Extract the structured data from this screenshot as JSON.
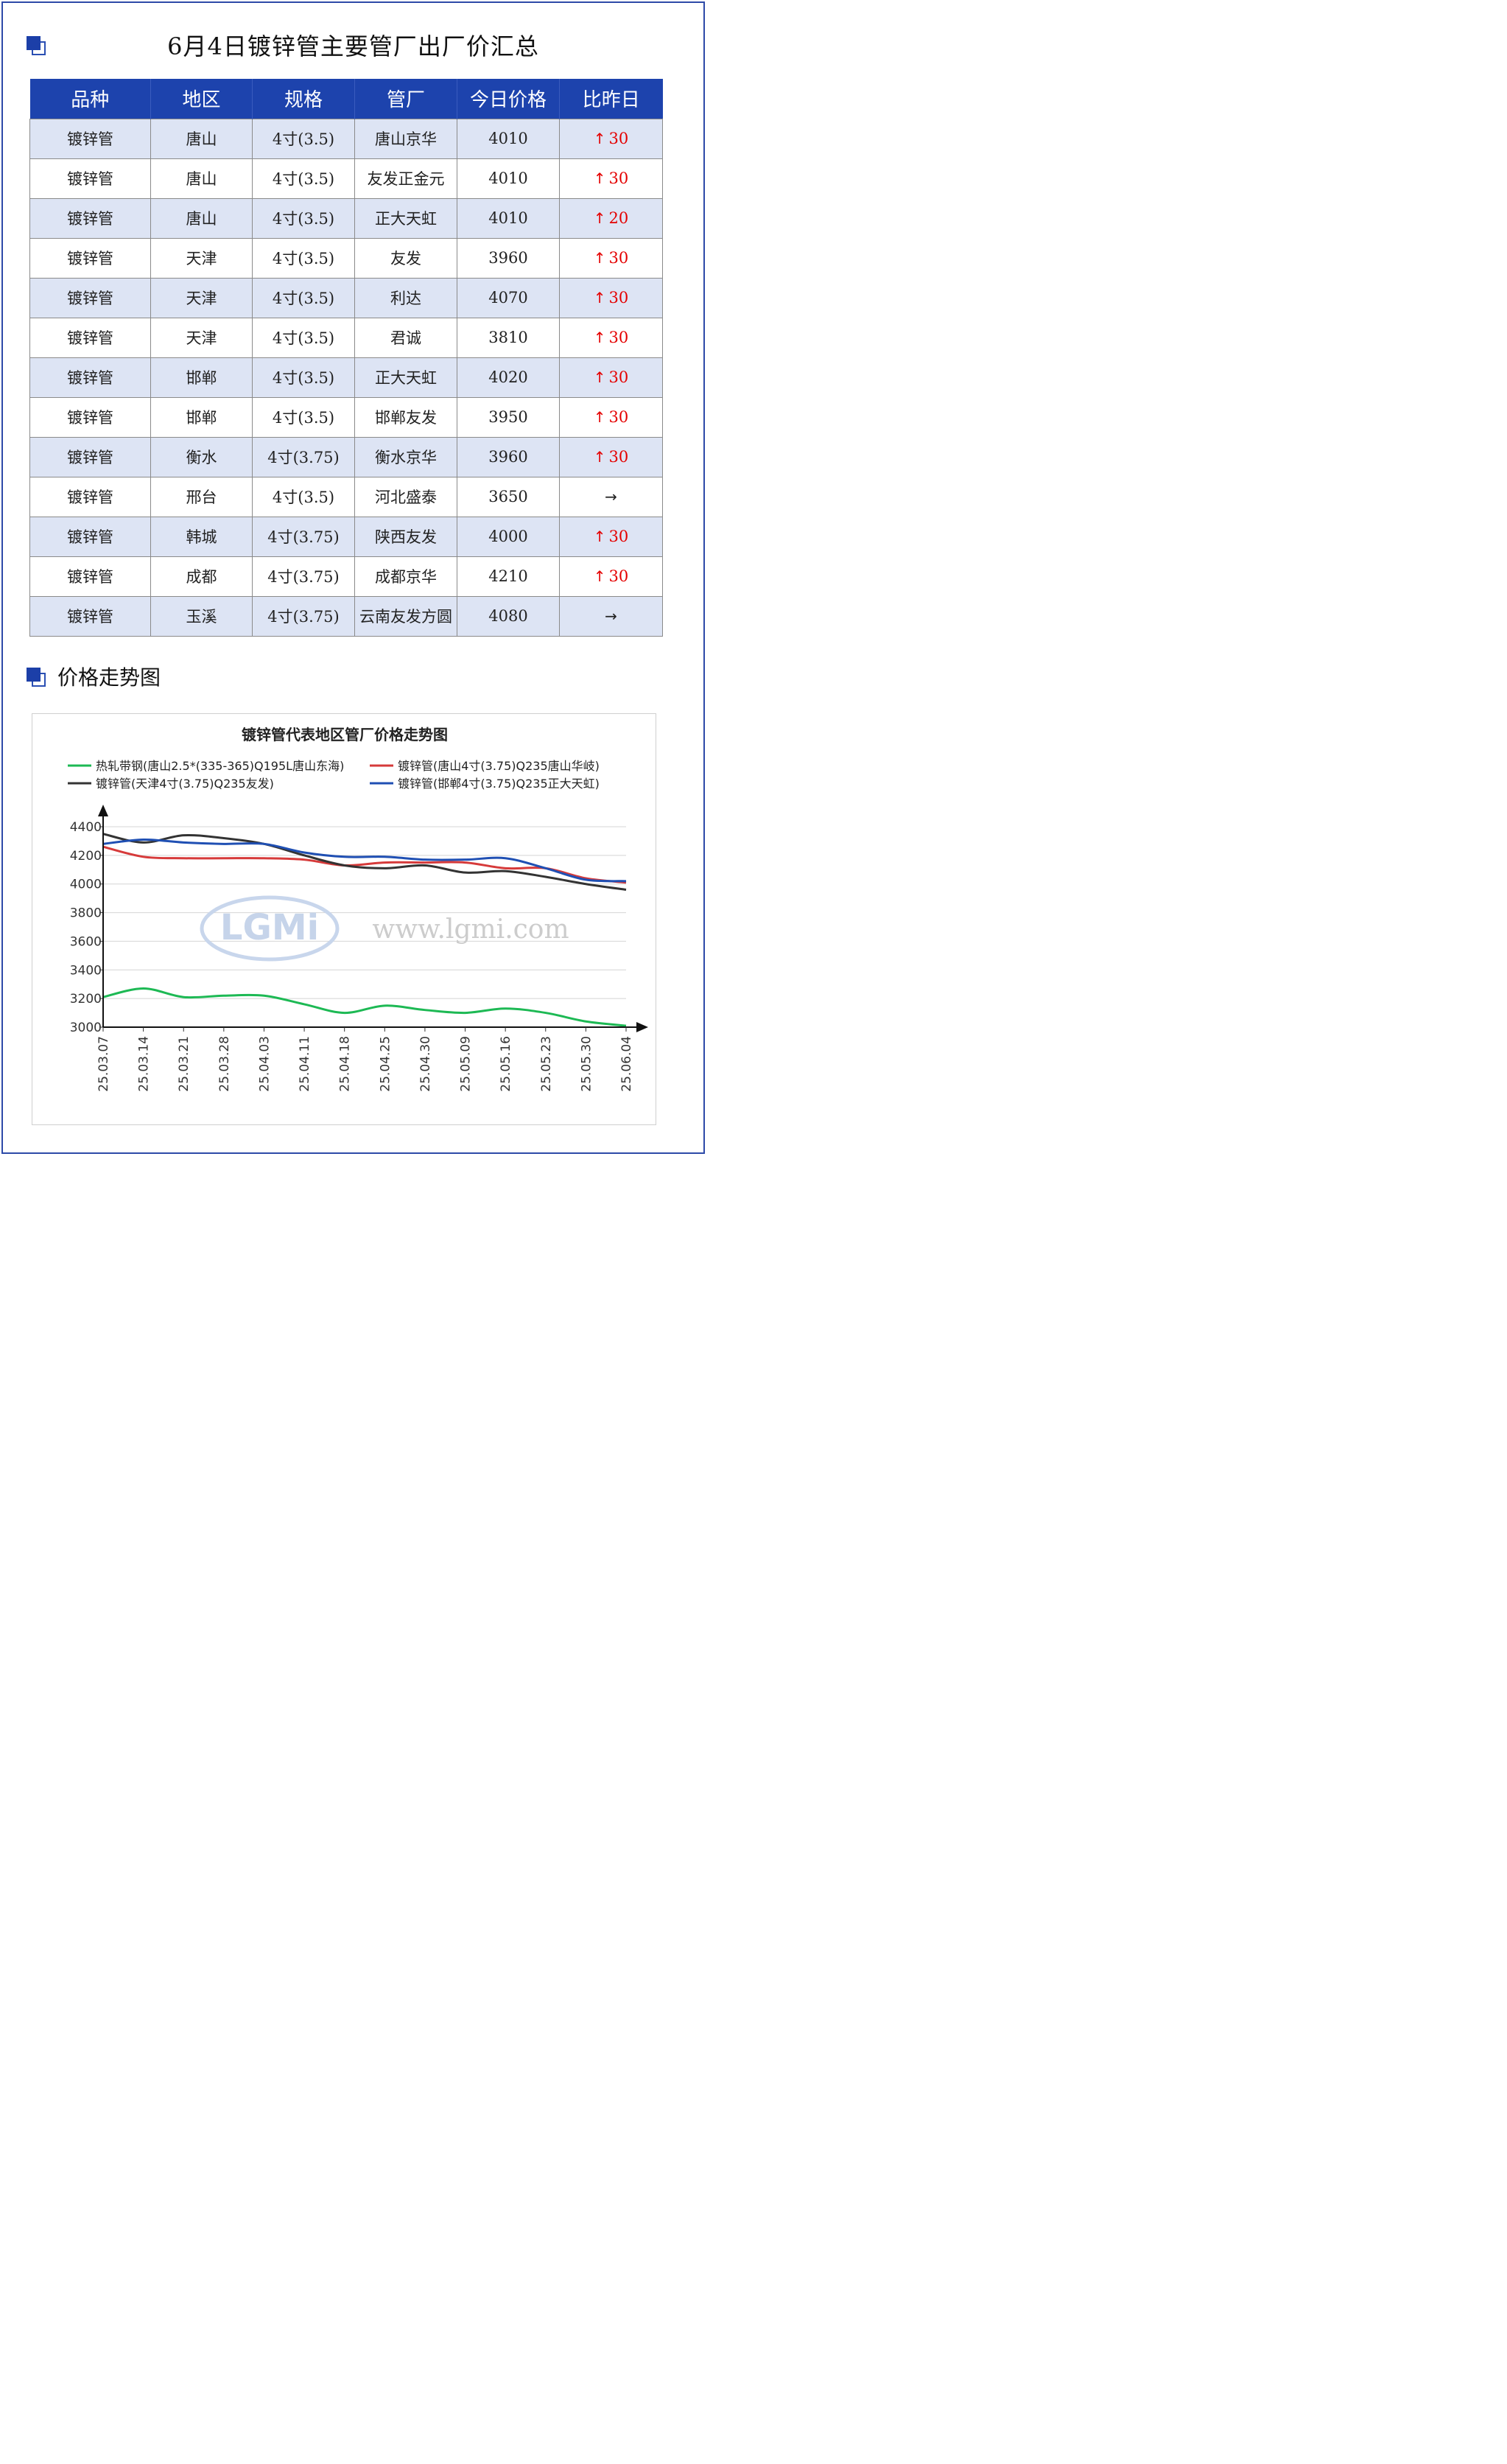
{
  "header": {
    "title": "6月4日镀锌管主要管厂出厂价汇总"
  },
  "table": {
    "columns": [
      "品种",
      "地区",
      "规格",
      "管厂",
      "今日价格",
      "比昨日"
    ],
    "rows": [
      {
        "product": "镀锌管",
        "region": "唐山",
        "spec": "4寸(3.5)",
        "mill": "唐山京华",
        "price": "4010",
        "dir": "up",
        "change": "30"
      },
      {
        "product": "镀锌管",
        "region": "唐山",
        "spec": "4寸(3.5)",
        "mill": "友发正金元",
        "price": "4010",
        "dir": "up",
        "change": "30"
      },
      {
        "product": "镀锌管",
        "region": "唐山",
        "spec": "4寸(3.5)",
        "mill": "正大天虹",
        "price": "4010",
        "dir": "up",
        "change": "20"
      },
      {
        "product": "镀锌管",
        "region": "天津",
        "spec": "4寸(3.5)",
        "mill": "友发",
        "price": "3960",
        "dir": "up",
        "change": "30"
      },
      {
        "product": "镀锌管",
        "region": "天津",
        "spec": "4寸(3.5)",
        "mill": "利达",
        "price": "4070",
        "dir": "up",
        "change": "30"
      },
      {
        "product": "镀锌管",
        "region": "天津",
        "spec": "4寸(3.5)",
        "mill": "君诚",
        "price": "3810",
        "dir": "up",
        "change": "30"
      },
      {
        "product": "镀锌管",
        "region": "邯郸",
        "spec": "4寸(3.5)",
        "mill": "正大天虹",
        "price": "4020",
        "dir": "up",
        "change": "30"
      },
      {
        "product": "镀锌管",
        "region": "邯郸",
        "spec": "4寸(3.5)",
        "mill": "邯郸友发",
        "price": "3950",
        "dir": "up",
        "change": "30"
      },
      {
        "product": "镀锌管",
        "region": "衡水",
        "spec": "4寸(3.75)",
        "mill": "衡水京华",
        "price": "3960",
        "dir": "up",
        "change": "30"
      },
      {
        "product": "镀锌管",
        "region": "邢台",
        "spec": "4寸(3.5)",
        "mill": "河北盛泰",
        "price": "3650",
        "dir": "flat",
        "change": ""
      },
      {
        "product": "镀锌管",
        "region": "韩城",
        "spec": "4寸(3.75)",
        "mill": "陕西友发",
        "price": "4000",
        "dir": "up",
        "change": "30"
      },
      {
        "product": "镀锌管",
        "region": "成都",
        "spec": "4寸(3.75)",
        "mill": "成都京华",
        "price": "4210",
        "dir": "up",
        "change": "30"
      },
      {
        "product": "镀锌管",
        "region": "玉溪",
        "spec": "4寸(3.75)",
        "mill": "云南友发方圆",
        "price": "4080",
        "dir": "flat",
        "change": ""
      }
    ]
  },
  "section": {
    "title": "价格走势图"
  },
  "chart_data": {
    "type": "line",
    "title": "镀锌管代表地区管厂价格走势图",
    "xlabel": "",
    "ylabel": "",
    "categories": [
      "25.03.07",
      "25.03.14",
      "25.03.21",
      "25.03.28",
      "25.04.03",
      "25.04.11",
      "25.04.18",
      "25.04.25",
      "25.04.30",
      "25.05.09",
      "25.05.16",
      "25.05.23",
      "25.05.30",
      "25.06.04"
    ],
    "ylim": [
      3000,
      4400
    ],
    "yticks": [
      3000,
      3200,
      3400,
      3600,
      3800,
      4000,
      4200,
      4400
    ],
    "grid": true,
    "legend_position": "top",
    "watermark": "www.lgmi.com",
    "logo_text": "LGMi",
    "series": [
      {
        "name": "热轧带钢(唐山2.5*(335-365)Q195L唐山东海)",
        "color": "#1db954",
        "values": [
          3210,
          3270,
          3210,
          3220,
          3220,
          3160,
          3100,
          3150,
          3120,
          3100,
          3130,
          3100,
          3040,
          3010
        ]
      },
      {
        "name": "镀锌管(唐山4寸(3.75)Q235唐山华岐)",
        "color": "#d63a3a",
        "values": [
          4260,
          4190,
          4180,
          4180,
          4180,
          4170,
          4130,
          4150,
          4150,
          4150,
          4110,
          4110,
          4040,
          4010
        ]
      },
      {
        "name": "镀锌管(天津4寸(3.75)Q235友发)",
        "color": "#333333",
        "values": [
          4350,
          4290,
          4340,
          4320,
          4280,
          4200,
          4130,
          4110,
          4130,
          4080,
          4090,
          4050,
          4000,
          3960
        ]
      },
      {
        "name": "镀锌管(邯郸4寸(3.75)Q235正大天虹)",
        "color": "#1f4fb3",
        "values": [
          4280,
          4310,
          4290,
          4280,
          4280,
          4220,
          4190,
          4190,
          4170,
          4170,
          4180,
          4110,
          4030,
          4020
        ]
      }
    ]
  },
  "colors": {
    "header_bg": "#1d43ad",
    "alt_row_bg": "#dde4f4",
    "up_color": "#e40000"
  }
}
